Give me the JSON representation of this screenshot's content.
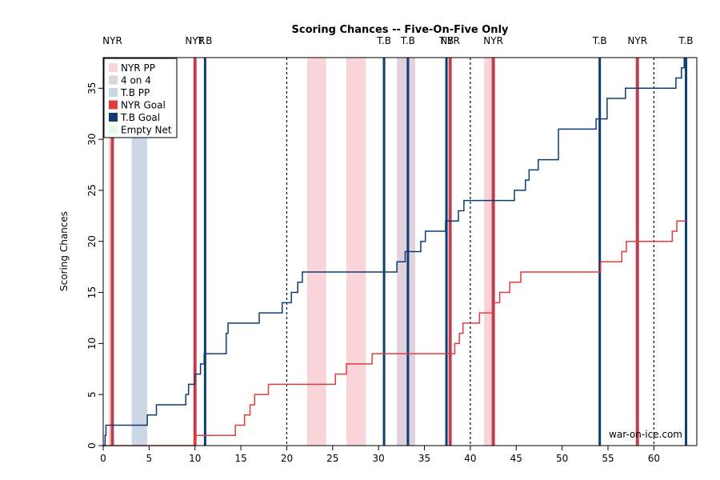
{
  "chart_data": {
    "type": "line",
    "title": "Scoring Chances -- Five-On-Five Only",
    "xlabel": "",
    "ylabel": "Scoring Chances",
    "watermark": "war-on-ice.com",
    "xlim": [
      0,
      64.5
    ],
    "ylim": [
      0,
      38
    ],
    "xticks": [
      0,
      5,
      10,
      15,
      20,
      25,
      30,
      35,
      40,
      45,
      50,
      55,
      60
    ],
    "yticks": [
      0,
      5,
      10,
      15,
      20,
      25,
      30,
      35
    ],
    "period_lines": [
      20,
      40,
      60
    ],
    "colors": {
      "nyr_pp": "#f9d5da",
      "four_on_four": "#dfd2dd",
      "tb_pp": "#cbd7e5",
      "nyr_goal": "#e03c3c",
      "tb_goal": "#0d3c73",
      "empty_net": "#e6fbe6",
      "nyr_line": "#e03c3c",
      "tb_line": "#0d3c73"
    },
    "legend": {
      "position": "top-left",
      "entries": [
        {
          "label": "NYR PP",
          "color_key": "nyr_pp"
        },
        {
          "label": "4 on 4",
          "color_key": "four_on_four"
        },
        {
          "label": "T.B PP",
          "color_key": "tb_pp"
        },
        {
          "label": "NYR Goal",
          "color_key": "nyr_goal"
        },
        {
          "label": "T.B Goal",
          "color_key": "tb_goal"
        },
        {
          "label": "Empty Net",
          "color_key": "empty_net"
        }
      ]
    },
    "shaded_periods": [
      {
        "type": "nyr_pp",
        "start": 0.6,
        "end": 1.0
      },
      {
        "type": "tb_pp",
        "start": 3.1,
        "end": 4.8
      },
      {
        "type": "nyr_pp",
        "start": 22.2,
        "end": 24.3
      },
      {
        "type": "nyr_pp",
        "start": 26.5,
        "end": 28.6
      },
      {
        "type": "four_on_four",
        "start": 32.0,
        "end": 34.0
      },
      {
        "type": "nyr_pp",
        "start": 41.5,
        "end": 42.7
      }
    ],
    "goals": [
      {
        "team": "NYR",
        "time": 1.0
      },
      {
        "team": "NYR",
        "time": 10.0
      },
      {
        "team": "T.B",
        "time": 11.1
      },
      {
        "team": "T.B",
        "time": 30.6
      },
      {
        "team": "T.B",
        "time": 33.2
      },
      {
        "team": "T.B",
        "time": 37.4
      },
      {
        "team": "NYR",
        "time": 37.8
      },
      {
        "team": "NYR",
        "time": 42.5
      },
      {
        "team": "T.B",
        "time": 54.1
      },
      {
        "team": "NYR",
        "time": 58.2
      },
      {
        "team": "T.B",
        "time": 63.5
      }
    ],
    "series": [
      {
        "name": "NYR",
        "color_key": "nyr_line",
        "points": [
          [
            0,
            0
          ],
          [
            10,
            1
          ],
          [
            14.4,
            2
          ],
          [
            15.4,
            3
          ],
          [
            16.0,
            4
          ],
          [
            16.5,
            5
          ],
          [
            18.0,
            6
          ],
          [
            25.3,
            7
          ],
          [
            26.5,
            8
          ],
          [
            29.3,
            9
          ],
          [
            38.3,
            10
          ],
          [
            38.8,
            11
          ],
          [
            39.2,
            12
          ],
          [
            41.0,
            13
          ],
          [
            42.6,
            14
          ],
          [
            43.2,
            15
          ],
          [
            44.3,
            16
          ],
          [
            45.5,
            17
          ],
          [
            54.2,
            18
          ],
          [
            56.5,
            19
          ],
          [
            57.0,
            20
          ],
          [
            62.0,
            21
          ],
          [
            62.5,
            22
          ],
          [
            63.5,
            22
          ]
        ]
      },
      {
        "name": "T.B",
        "color_key": "tb_line",
        "points": [
          [
            0,
            0
          ],
          [
            0.2,
            1
          ],
          [
            0.3,
            2
          ],
          [
            4.8,
            3
          ],
          [
            5.8,
            4
          ],
          [
            9.0,
            5
          ],
          [
            9.3,
            6
          ],
          [
            10.0,
            7
          ],
          [
            10.6,
            8
          ],
          [
            11.0,
            9
          ],
          [
            13.4,
            11
          ],
          [
            13.6,
            12
          ],
          [
            17.0,
            13
          ],
          [
            19.5,
            14
          ],
          [
            20.5,
            15
          ],
          [
            21.2,
            16
          ],
          [
            21.7,
            17
          ],
          [
            32.0,
            18
          ],
          [
            32.9,
            19
          ],
          [
            34.6,
            20
          ],
          [
            35.1,
            21
          ],
          [
            37.3,
            22
          ],
          [
            38.7,
            23
          ],
          [
            39.3,
            24
          ],
          [
            44.8,
            25
          ],
          [
            46.0,
            26
          ],
          [
            46.4,
            27
          ],
          [
            47.4,
            28
          ],
          [
            49.6,
            31
          ],
          [
            53.7,
            32
          ],
          [
            54.9,
            34
          ],
          [
            56.9,
            35
          ],
          [
            62.4,
            36
          ],
          [
            63.0,
            37
          ],
          [
            63.3,
            38
          ]
        ]
      }
    ]
  }
}
